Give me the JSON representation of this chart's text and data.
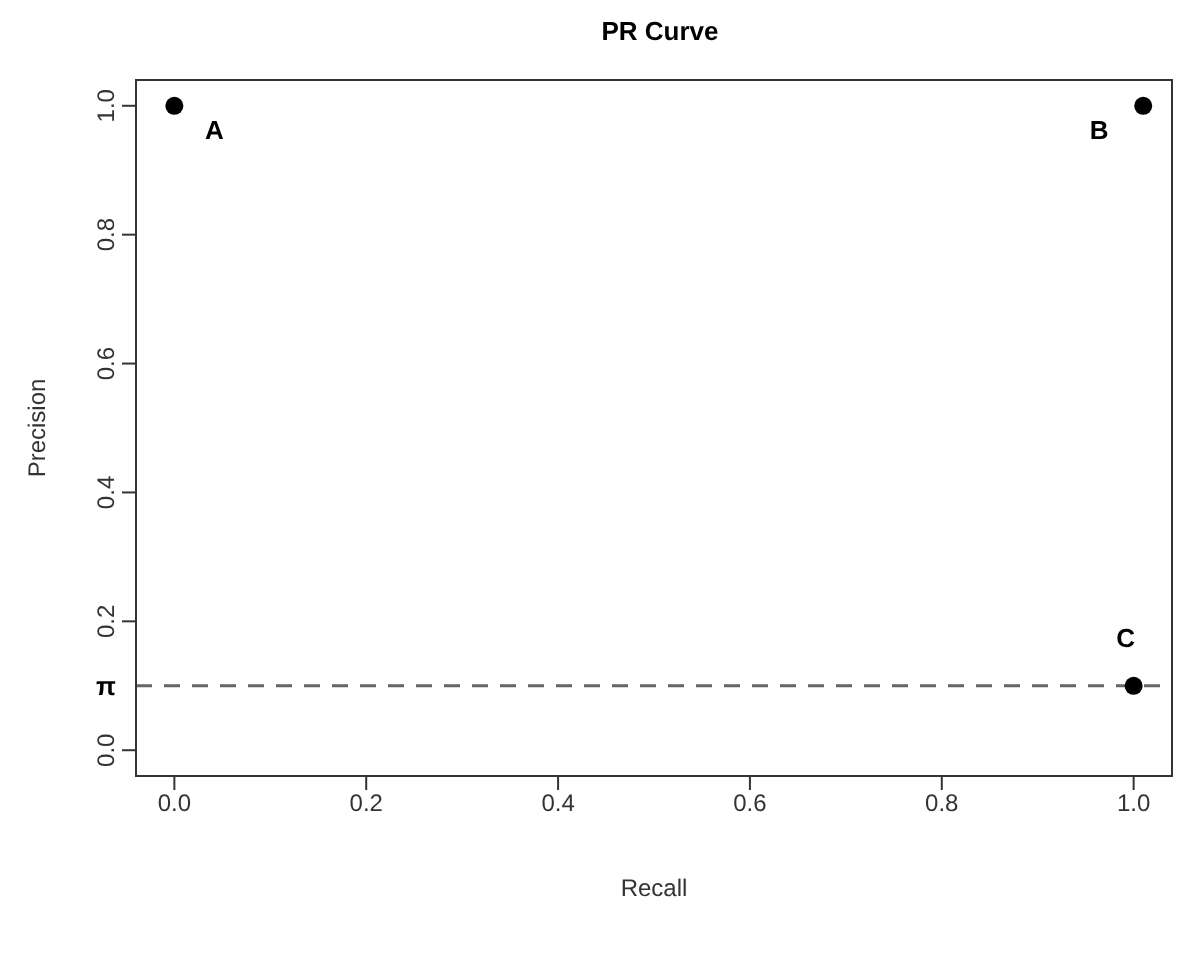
{
  "chart_data": {
    "type": "scatter",
    "title": "PR Curve",
    "xlabel": "Recall",
    "ylabel": "Precision",
    "x": [
      0,
      1.01,
      1
    ],
    "series": [
      {
        "color": "#000000",
        "values": [
          1,
          1,
          0.1
        ]
      }
    ],
    "xlim": [
      -0.04,
      1.04
    ],
    "xticks": [
      {
        "value": 0,
        "label": "0.0"
      },
      0.2,
      0.4,
      0.6,
      0.8,
      {
        "value": 1,
        "label": "1.0"
      }
    ],
    "ylim": [
      -0.04,
      1.04
    ],
    "yticks": [
      {
        "value": 0,
        "label": "0.0"
      },
      0.2,
      0.4,
      0.6,
      0.8,
      {
        "value": 1,
        "label": "1.0"
      }
    ],
    "ref_lines": [
      {
        "axis": "y",
        "value": 0.1,
        "label": "π",
        "color": "#666666",
        "line_style": "dashed"
      }
    ],
    "annotations": [
      {
        "text": "A",
        "x": 0,
        "y": 1
      },
      {
        "text": "B",
        "x": 1.01,
        "y": 1
      },
      {
        "text": "C",
        "x": 1,
        "y": 0.1
      }
    ],
    "marker": "circle",
    "grid": false
  }
}
